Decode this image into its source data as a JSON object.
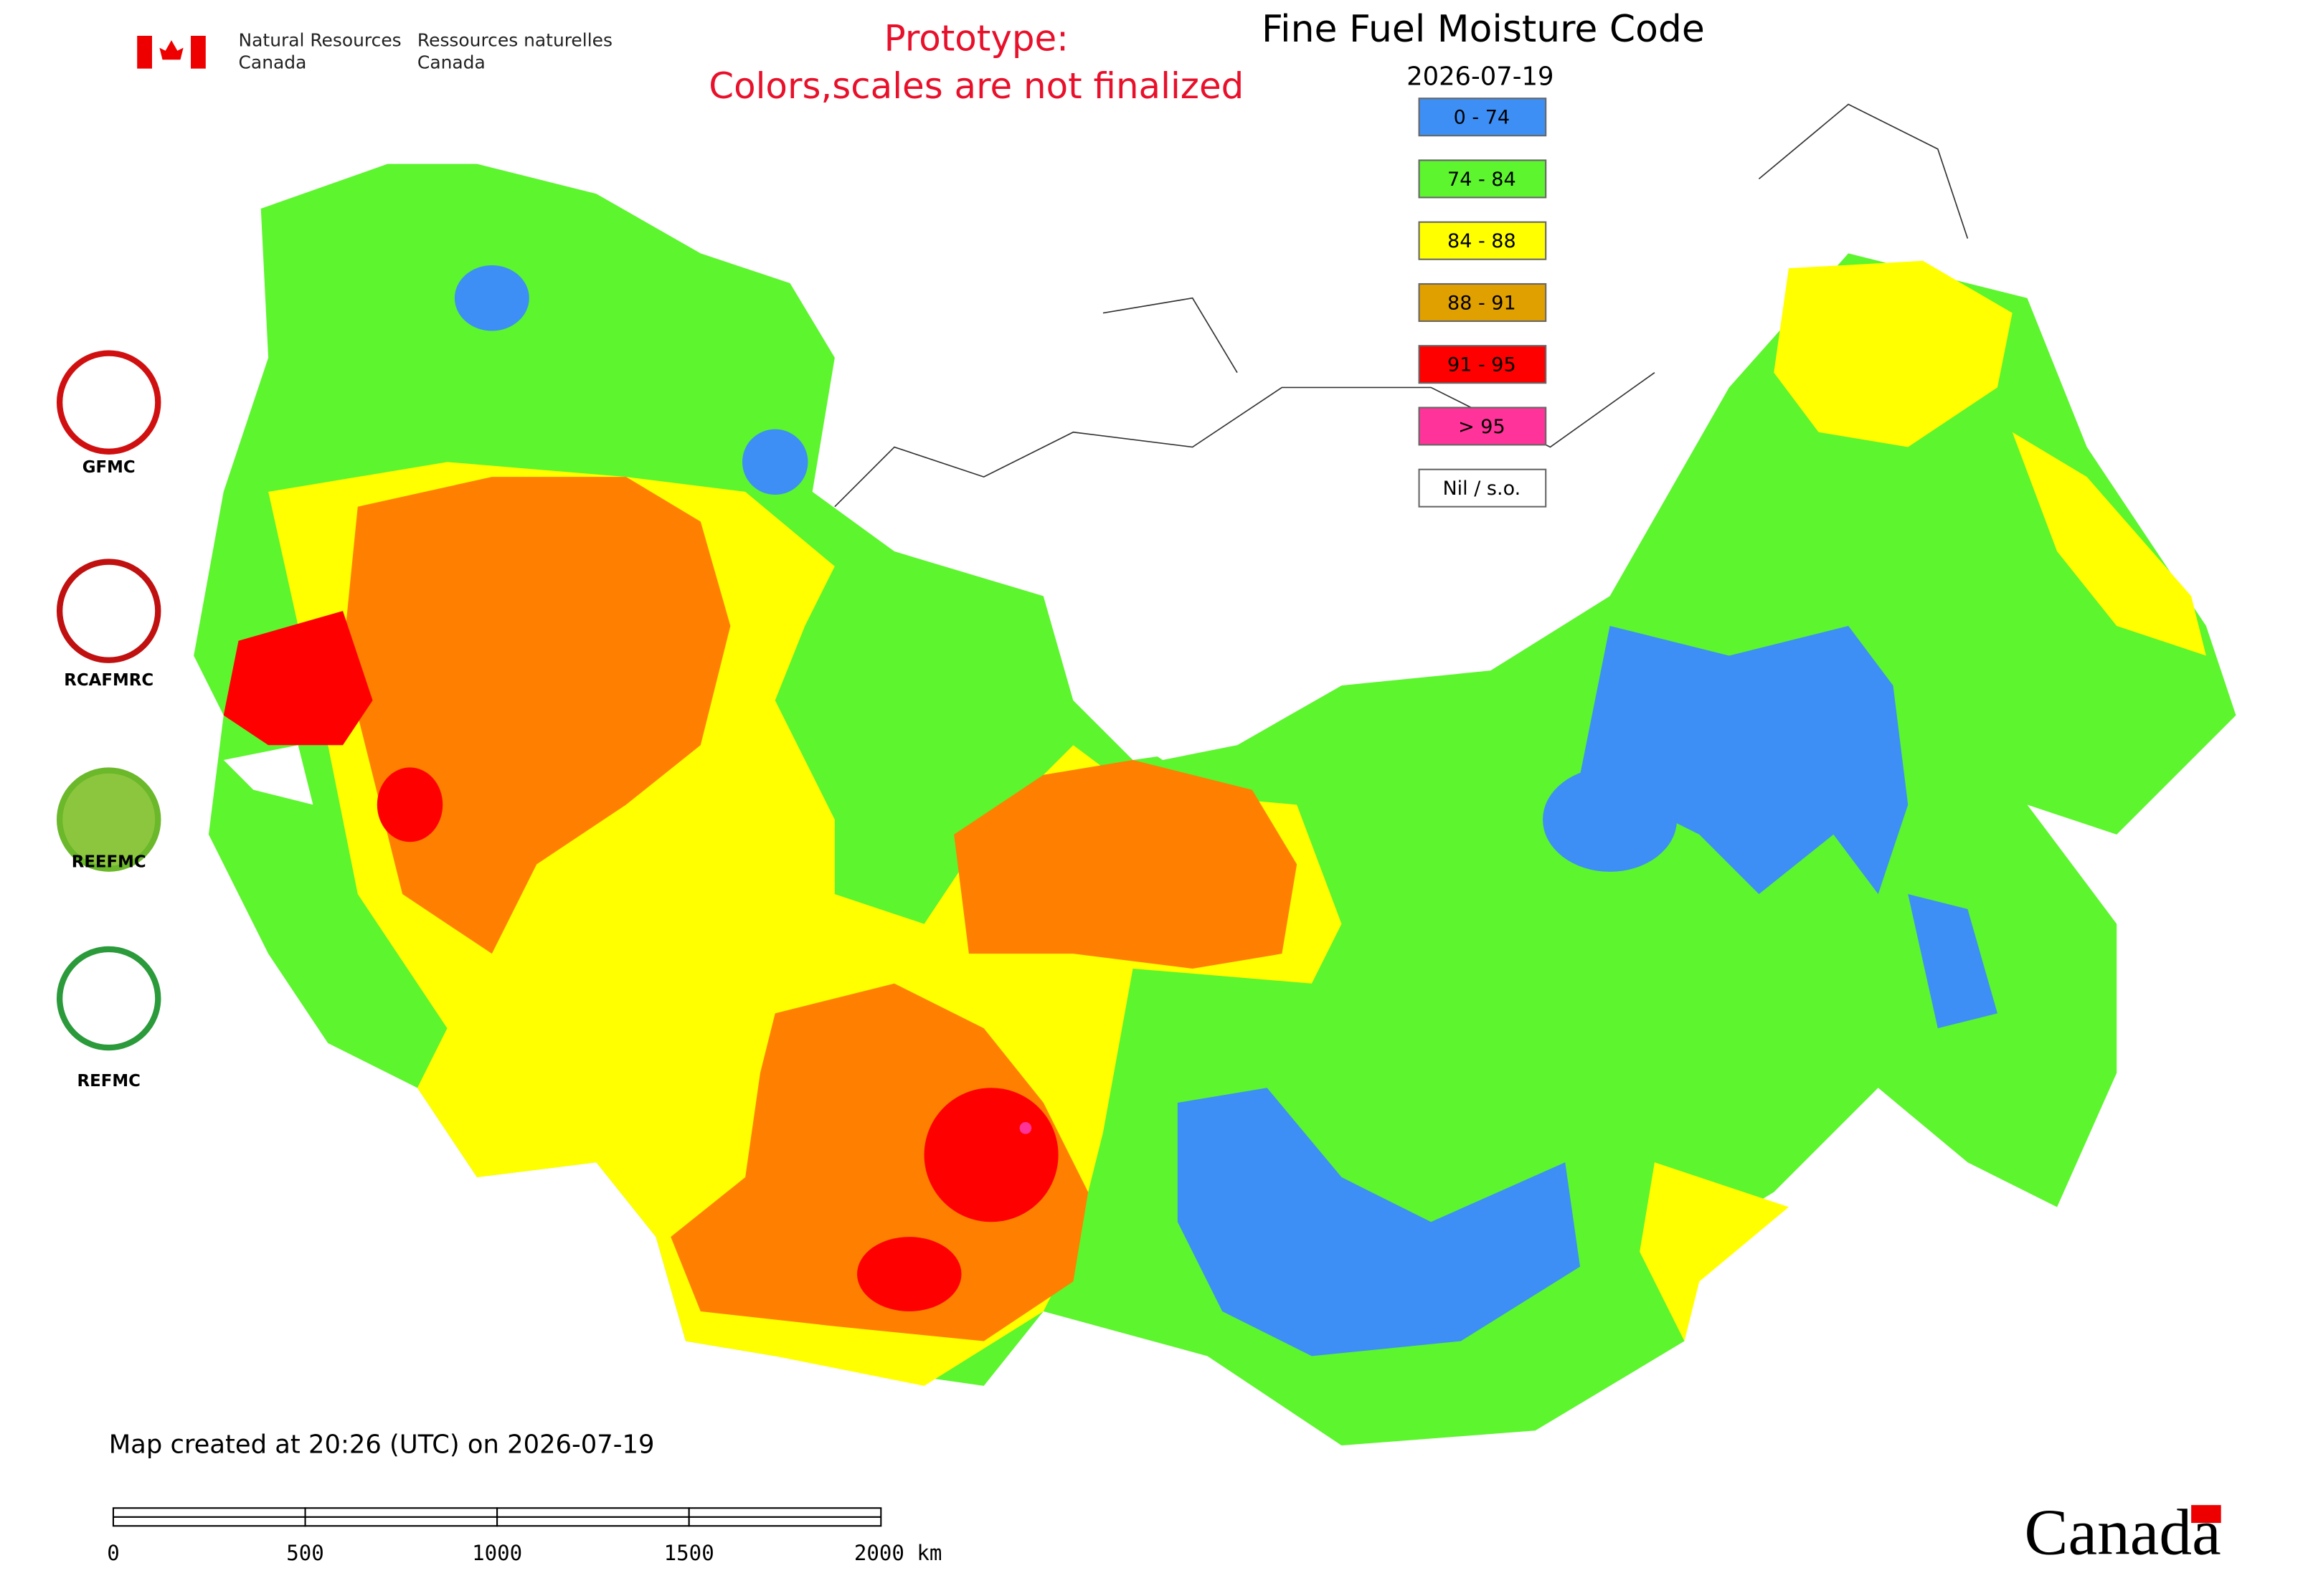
{
  "header": {
    "agency_en": [
      "Natural Resources",
      "Canada"
    ],
    "agency_fr": [
      "Ressources naturelles",
      "Canada"
    ]
  },
  "notice": [
    "Prototype:",
    "Colors,scales are not finalized"
  ],
  "title": "Fine Fuel Moisture Code",
  "date": "2026-07-19",
  "legend": [
    {
      "label": "0 - 74",
      "color": "#3d8ff5"
    },
    {
      "label": "74 - 84",
      "color": "#5cf52e"
    },
    {
      "label": "84 - 88",
      "color": "#ffff00"
    },
    {
      "label": "88 - 91",
      "color": "#e0a000"
    },
    {
      "label": "91 - 95",
      "color": "#ff0000"
    },
    {
      "label": "> 95",
      "color": "#ff3399"
    },
    {
      "label": "Nil / s.o.",
      "color": "#ffffff"
    }
  ],
  "logos": [
    "GFMC",
    "RCAFMRC",
    "REEFMC",
    "REFMC"
  ],
  "footer": "Map created at 20:26 (UTC) on 2026-07-19",
  "scale_bar": [
    "0",
    "500",
    "1000",
    "1500",
    "2000 km"
  ],
  "wordmark": "Canada"
}
